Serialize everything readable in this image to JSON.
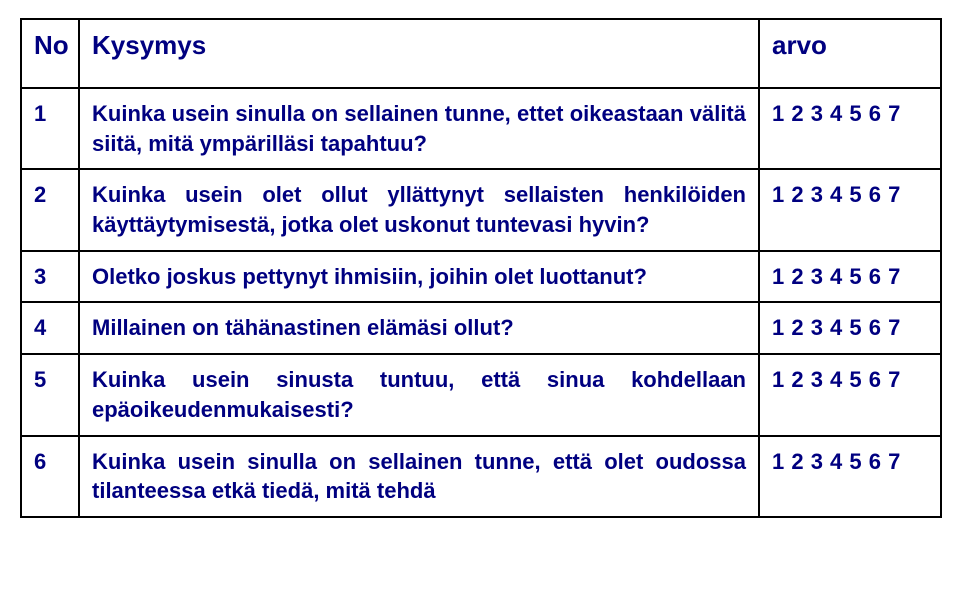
{
  "colors": {
    "text": "#000080",
    "border": "#000000",
    "background": "#ffffff"
  },
  "header": {
    "no": "No",
    "question": "Kysymys",
    "value": "arvo"
  },
  "rows": [
    {
      "no": "1",
      "question": "Kuinka usein sinulla on sellainen tunne, ettet oikeastaan välitä siitä, mitä ympärilläsi tapahtuu?",
      "value": "1 2 3 4 5 6 7"
    },
    {
      "no": "2",
      "question": "Kuinka usein olet ollut yllättynyt sellaisten henkilöiden käyttäytymisestä, jotka olet uskonut tuntevasi hyvin?",
      "value": "1 2 3 4 5 6 7"
    },
    {
      "no": "3",
      "question": "Oletko joskus pettynyt ihmisiin, joihin olet luottanut?",
      "value": "1 2 3 4 5 6 7"
    },
    {
      "no": "4",
      "question": "Millainen on tähänastinen elämäsi ollut?",
      "value": "1 2 3 4 5 6 7"
    },
    {
      "no": "5",
      "question": "Kuinka usein sinusta tuntuu, että sinua kohdellaan epäoikeudenmukaisesti?",
      "value": "1 2 3 4 5 6 7"
    },
    {
      "no": "6",
      "question": "Kuinka usein sinulla on sellainen tunne, että olet oudossa tilanteessa etkä tiedä, mitä tehdä",
      "value": "1 2 3 4 5 6 7"
    }
  ]
}
